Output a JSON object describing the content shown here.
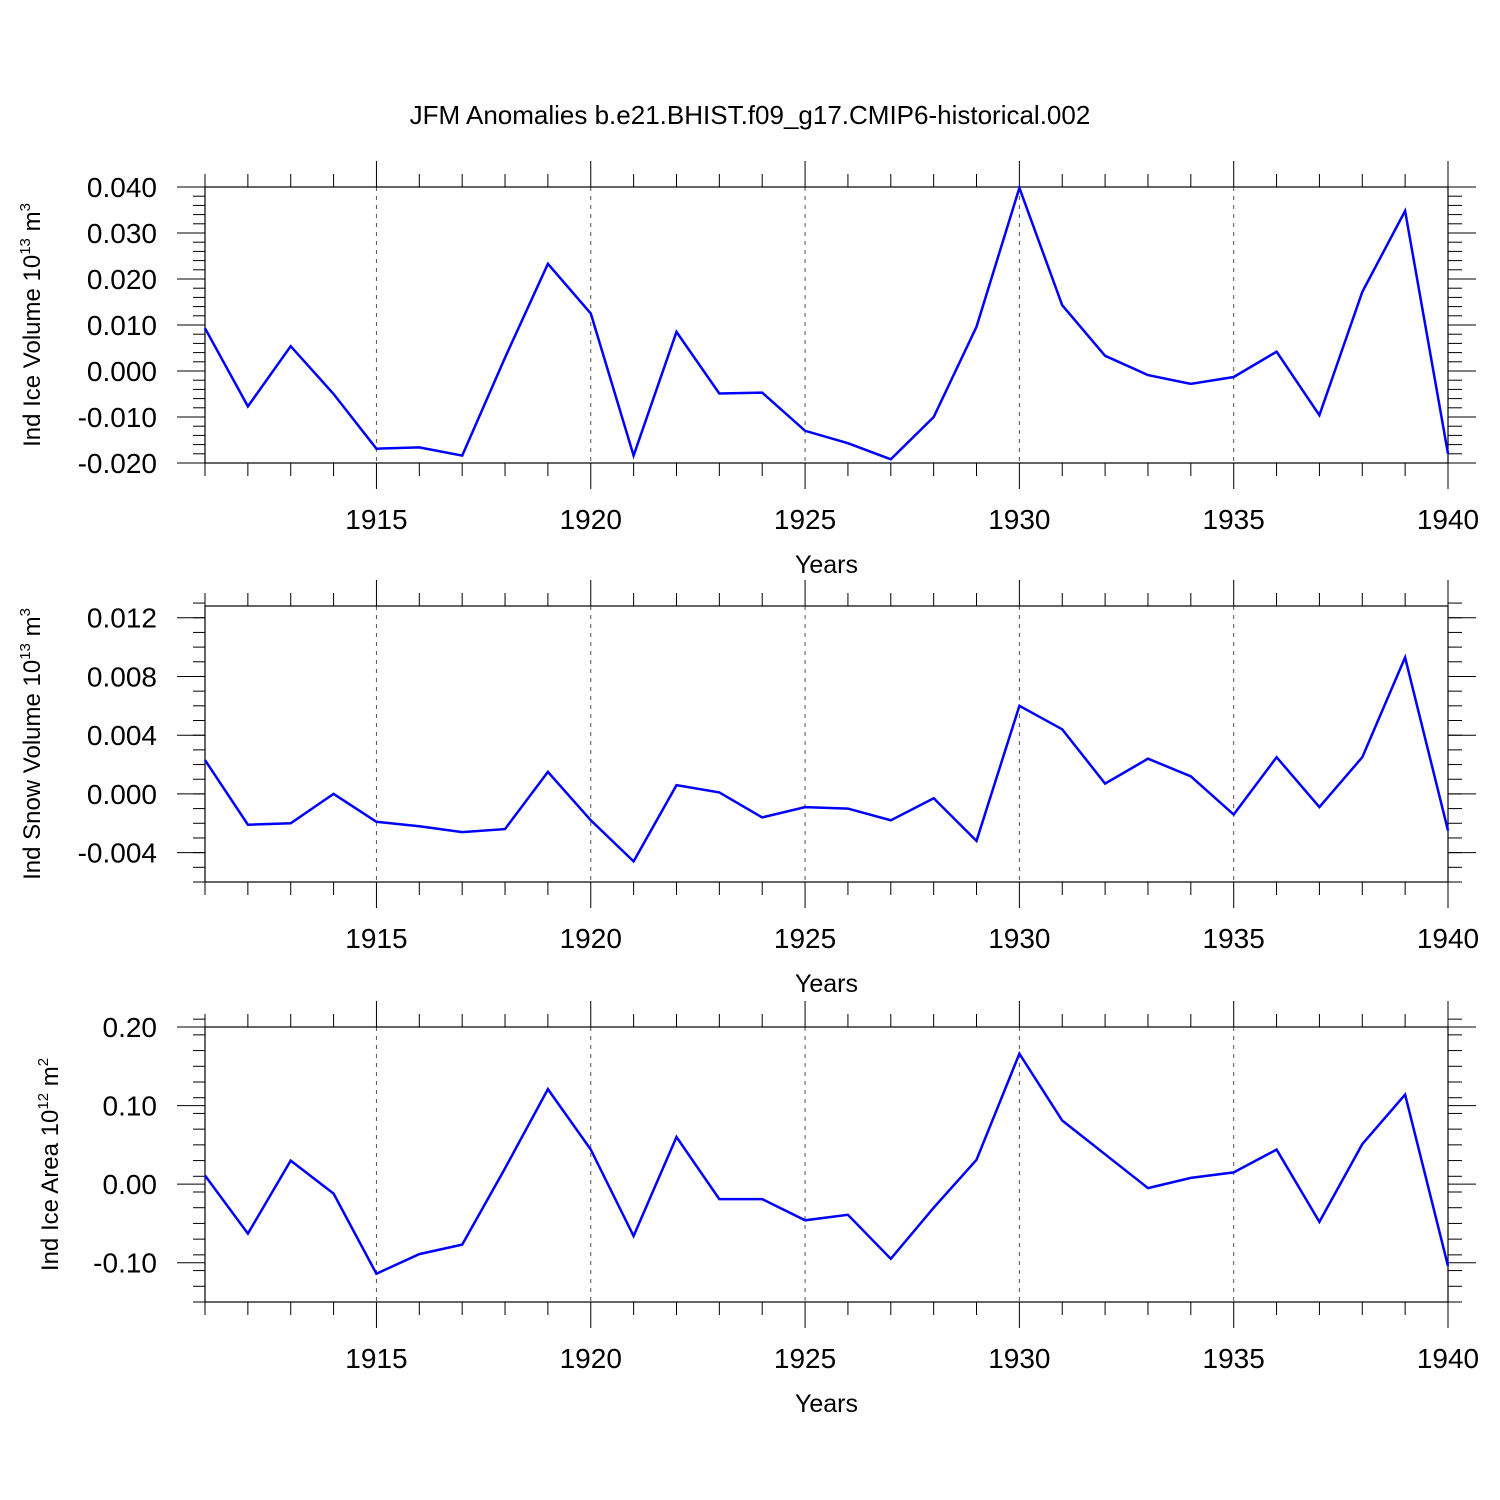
{
  "chart_data": {
    "title": "JFM Anomalies b.e21.BHIST.f09_g17.CMIP6-historical.002",
    "panels": [
      {
        "type": "line",
        "ylabel": {
          "base": "Ind Ice Volume 10",
          "exp": "13",
          "unit": " m",
          "unit_exp": "3"
        },
        "xlabel": "Years",
        "xlim": [
          1911,
          1940
        ],
        "ylim": [
          -0.02,
          0.04
        ],
        "ytick_values": [
          -0.02,
          -0.01,
          0.0,
          0.01,
          0.02,
          0.03,
          0.04
        ],
        "ytick_labels": [
          "-0.020",
          "-0.010",
          "0.000",
          "0.010",
          "0.020",
          "0.030",
          "0.040"
        ],
        "yminor_step": 0.002,
        "xtick_values": [
          1915,
          1920,
          1925,
          1930,
          1935,
          1940
        ],
        "xtick_labels": [
          "1915",
          "1920",
          "1925",
          "1930",
          "1935",
          "1940"
        ],
        "x": [
          1911,
          1912,
          1913,
          1914,
          1915,
          1916,
          1917,
          1918,
          1919,
          1920,
          1921,
          1922,
          1923,
          1924,
          1925,
          1926,
          1927,
          1928,
          1929,
          1930,
          1931,
          1932,
          1933,
          1934,
          1935,
          1936,
          1937,
          1938,
          1939,
          1940
        ],
        "y": [
          0.0093,
          -0.0077,
          0.0054,
          -0.005,
          -0.0169,
          -0.0166,
          -0.0184,
          0.0029,
          0.0233,
          0.0125,
          -0.0184,
          0.0085,
          -0.0049,
          -0.0047,
          -0.013,
          -0.0157,
          -0.0192,
          -0.01,
          0.0096,
          0.0398,
          0.0143,
          0.0033,
          -0.0009,
          -0.0028,
          -0.0013,
          0.0042,
          -0.0096,
          0.0172,
          0.0348,
          -0.018
        ]
      },
      {
        "type": "line",
        "ylabel": {
          "base": "Ind Snow Volume 10",
          "exp": "13",
          "unit": " m",
          "unit_exp": "3"
        },
        "xlabel": "Years",
        "xlim": [
          1911,
          1940
        ],
        "ylim": [
          -0.006,
          0.0128
        ],
        "ytick_values": [
          -0.004,
          0.0,
          0.004,
          0.008,
          0.012
        ],
        "ytick_labels": [
          "-0.004",
          "0.000",
          "0.004",
          "0.008",
          "0.012"
        ],
        "yminor_step": 0.001,
        "xtick_values": [
          1915,
          1920,
          1925,
          1930,
          1935,
          1940
        ],
        "xtick_labels": [
          "1915",
          "1920",
          "1925",
          "1930",
          "1935",
          "1940"
        ],
        "x": [
          1911,
          1912,
          1913,
          1914,
          1915,
          1916,
          1917,
          1918,
          1919,
          1920,
          1921,
          1922,
          1923,
          1924,
          1925,
          1926,
          1927,
          1928,
          1929,
          1930,
          1931,
          1932,
          1933,
          1934,
          1935,
          1936,
          1937,
          1938,
          1939,
          1940
        ],
        "y": [
          0.0023,
          -0.0021,
          -0.002,
          0.0,
          -0.0019,
          -0.0022,
          -0.0026,
          -0.0024,
          0.0015,
          -0.0018,
          -0.0046,
          0.0006,
          0.0001,
          -0.0016,
          -0.0009,
          -0.001,
          -0.0018,
          -0.0003,
          -0.0032,
          0.006,
          0.0044,
          0.0007,
          0.0024,
          0.0012,
          -0.0014,
          0.0025,
          -0.0009,
          0.0025,
          0.0093,
          -0.0025
        ]
      },
      {
        "type": "line",
        "ylabel": {
          "base": "Ind Ice Area 10",
          "exp": "12",
          "unit": " m",
          "unit_exp": "2"
        },
        "xlabel": "Years",
        "xlim": [
          1911,
          1940
        ],
        "ylim": [
          -0.15,
          0.2
        ],
        "ytick_values": [
          -0.1,
          0.0,
          0.1,
          0.2
        ],
        "ytick_labels": [
          "-0.10",
          "0.00",
          "0.10",
          "0.20"
        ],
        "yminor_step": 0.02,
        "xtick_values": [
          1915,
          1920,
          1925,
          1930,
          1935,
          1940
        ],
        "xtick_labels": [
          "1915",
          "1920",
          "1925",
          "1930",
          "1935",
          "1940"
        ],
        "x": [
          1911,
          1912,
          1913,
          1914,
          1915,
          1916,
          1917,
          1918,
          1919,
          1920,
          1921,
          1922,
          1923,
          1924,
          1925,
          1926,
          1927,
          1928,
          1929,
          1930,
          1931,
          1932,
          1933,
          1934,
          1935,
          1936,
          1937,
          1938,
          1939,
          1940
        ],
        "y": [
          0.011,
          -0.063,
          0.03,
          -0.012,
          -0.114,
          -0.089,
          -0.077,
          0.02,
          0.121,
          0.044,
          -0.066,
          0.06,
          -0.019,
          -0.019,
          -0.046,
          -0.039,
          -0.095,
          -0.03,
          0.031,
          0.166,
          0.081,
          0.038,
          -0.005,
          0.008,
          0.015,
          0.044,
          -0.048,
          0.051,
          0.114,
          -0.104
        ]
      }
    ]
  },
  "style": {
    "line_color": "#0000ff",
    "axis_color": "#000000",
    "grid_color": "#555555"
  }
}
